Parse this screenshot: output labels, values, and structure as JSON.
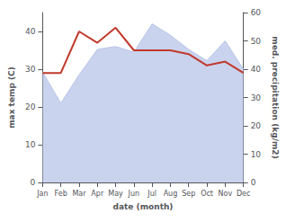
{
  "chart_data": {
    "type": "line",
    "categories": [
      "Jan",
      "Feb",
      "Mar",
      "Apr",
      "May",
      "Jun",
      "Jul",
      "Aug",
      "Sep",
      "Oct",
      "Nov",
      "Dec"
    ],
    "xlabel": "date (month)",
    "ylabel": "max temp (C)",
    "y2label": "med. precipitation (kg/m2)",
    "series": [
      {
        "type": "line",
        "color": "#c0392b",
        "values": [
          29,
          29,
          40,
          37,
          41,
          35,
          35,
          35,
          34,
          31,
          32,
          29
        ]
      },
      {
        "type": "area",
        "axis": "y2",
        "color": "#b8c4e8",
        "values": [
          39,
          28,
          38,
          47,
          48,
          46,
          56,
          52,
          47,
          43,
          50,
          40
        ]
      }
    ],
    "ylim": [
      0,
      45
    ],
    "yticks": [
      0,
      10,
      20,
      30,
      40
    ],
    "y2lim": [
      0,
      60
    ],
    "y2ticks": [
      0,
      10,
      20,
      30,
      40,
      50,
      60
    ],
    "grid": false
  }
}
